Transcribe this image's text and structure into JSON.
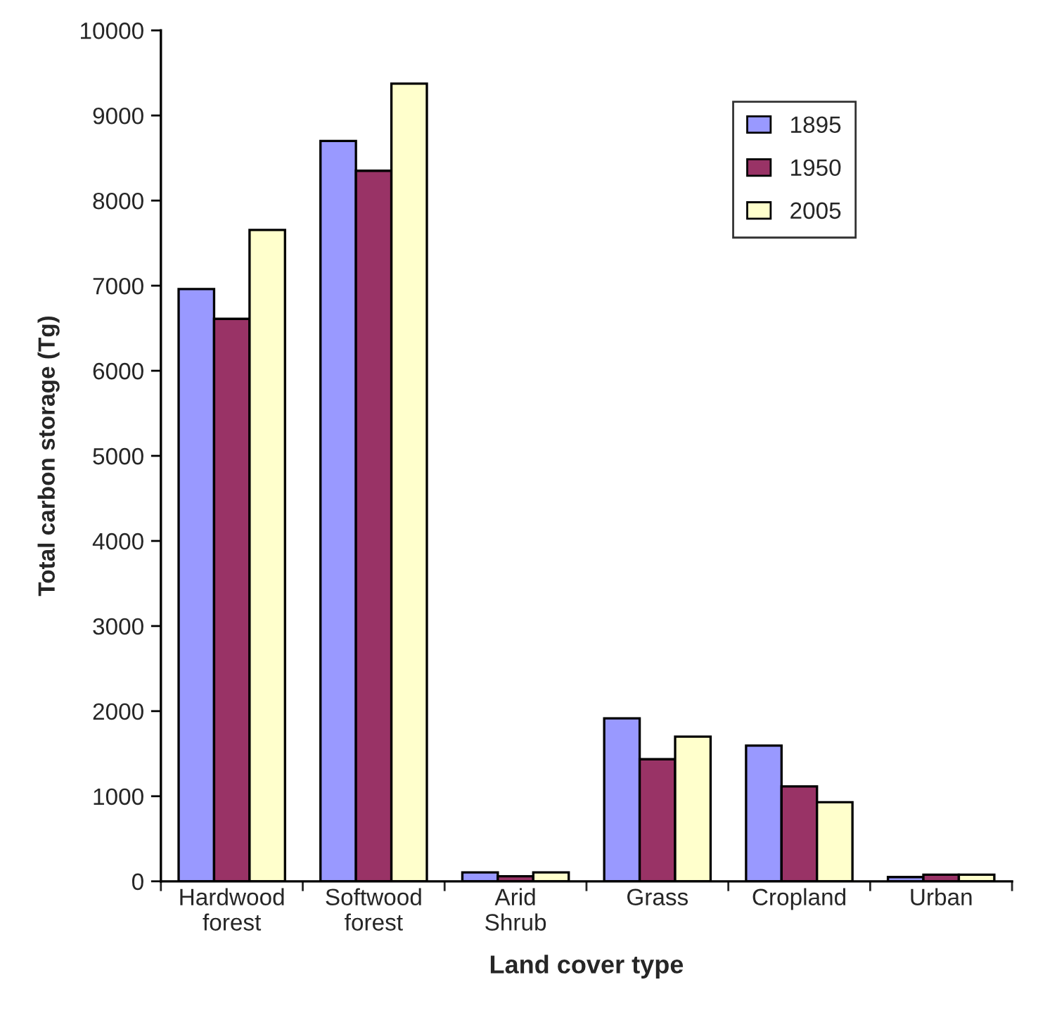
{
  "chart_data": {
    "type": "bar",
    "xlabel": "Land cover type",
    "ylabel": "Total carbon storage (Tg)",
    "categories": [
      "Hardwood\nforest",
      "Softwood\nforest",
      "Arid\nShrub",
      "Grass",
      "Cropland",
      "Urban"
    ],
    "series": [
      {
        "name": "1895",
        "color": "#9999ff",
        "values": [
          6960,
          8700,
          105,
          1915,
          1595,
          50
        ]
      },
      {
        "name": "1950",
        "color": "#993366",
        "values": [
          6610,
          8350,
          60,
          1435,
          1115,
          78
        ]
      },
      {
        "name": "2005",
        "color": "#ffffcc",
        "values": [
          7655,
          9375,
          105,
          1700,
          930,
          78
        ]
      }
    ],
    "ylim": [
      0,
      10000
    ],
    "yticks": [
      0,
      1000,
      2000,
      3000,
      4000,
      5000,
      6000,
      7000,
      8000,
      9000,
      10000
    ],
    "grid": false,
    "legend": "top right"
  }
}
